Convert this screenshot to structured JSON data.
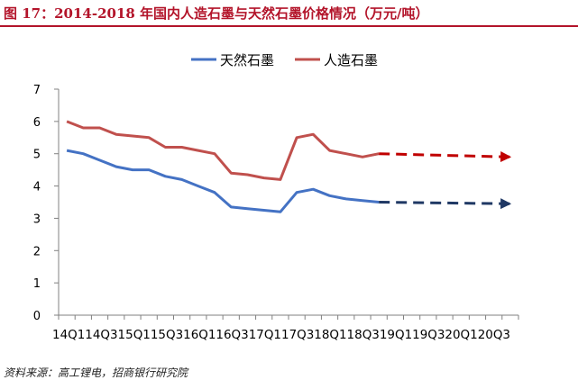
{
  "figure": {
    "title": "图 17：2014-2018 年国内人造石墨与天然石墨价格情况（万元/吨）",
    "source": "资料来源：高工锂电，招商银行研究院"
  },
  "colors": {
    "title": "#b3142a",
    "natural": "#4472c4",
    "artificial": "#c0504d",
    "natural_forecast": "#1f3864",
    "artificial_forecast": "#c00000"
  },
  "chart_data": {
    "type": "line",
    "title": "",
    "xlabel": "",
    "ylabel": "",
    "ylim": [
      0,
      7
    ],
    "yticks": [
      "0",
      "1",
      "2",
      "3",
      "4",
      "5",
      "6",
      "7"
    ],
    "x_tick_labels": [
      "14Q1",
      "14Q3",
      "15Q1",
      "15Q3",
      "16Q1",
      "16Q3",
      "17Q1",
      "17Q3",
      "18Q1",
      "18Q3",
      "19Q1",
      "19Q3",
      "20Q1",
      "20Q3"
    ],
    "legend": [
      "天然石墨",
      "人造石墨"
    ],
    "series": [
      {
        "name": "天然石墨",
        "x": [
          0,
          1,
          2,
          3,
          4,
          5,
          6,
          7,
          8,
          9,
          10,
          11,
          12,
          13,
          14,
          15,
          16,
          17,
          18,
          19
        ],
        "values": [
          5.1,
          5.0,
          4.8,
          4.6,
          4.5,
          4.5,
          4.3,
          4.2,
          4.0,
          3.8,
          3.35,
          3.3,
          3.25,
          3.2,
          3.8,
          3.9,
          3.7,
          3.6,
          3.55,
          3.5
        ]
      },
      {
        "name": "人造石墨",
        "x": [
          0,
          1,
          2,
          3,
          4,
          5,
          6,
          7,
          8,
          9,
          10,
          11,
          12,
          13,
          14,
          15,
          16,
          17,
          18,
          19
        ],
        "values": [
          6.0,
          5.8,
          5.8,
          5.6,
          5.55,
          5.5,
          5.2,
          5.2,
          5.1,
          5.0,
          4.4,
          4.35,
          4.25,
          4.2,
          5.5,
          5.6,
          5.1,
          5.0,
          4.9,
          5.0
        ]
      }
    ],
    "forecast": [
      {
        "name": "天然石墨",
        "x": [
          19,
          27
        ],
        "values": [
          3.5,
          3.45
        ]
      },
      {
        "name": "人造石墨",
        "x": [
          19,
          27
        ],
        "values": [
          5.0,
          4.9
        ]
      }
    ]
  }
}
